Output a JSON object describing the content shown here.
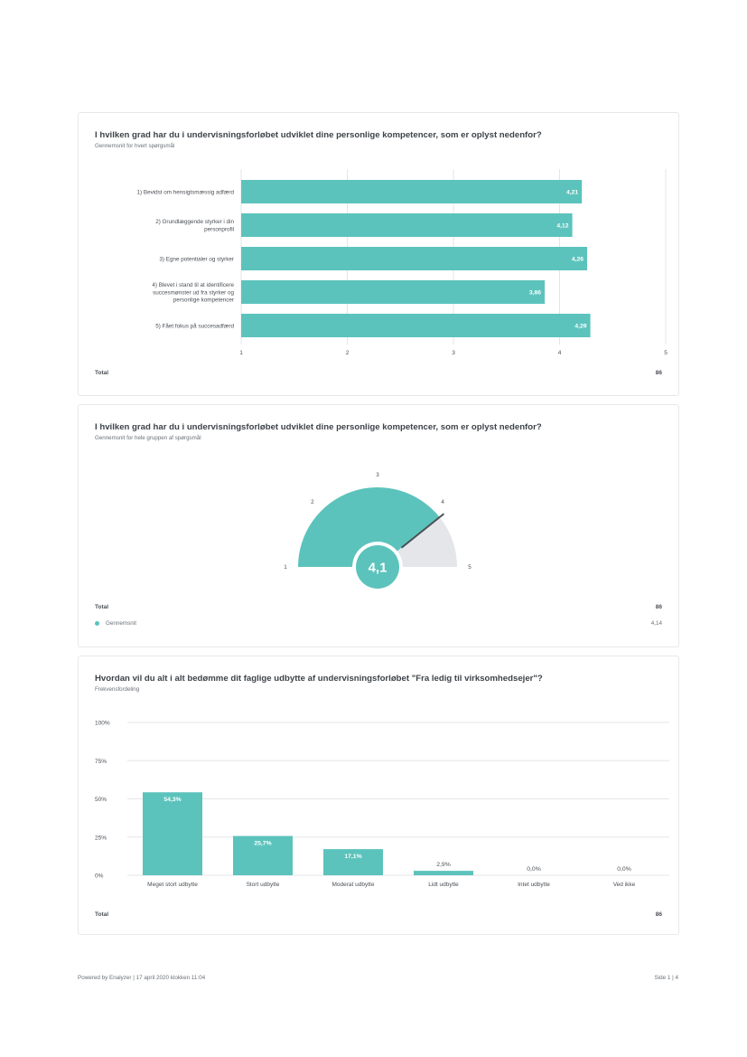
{
  "card1": {
    "title": "I hvilken grad har du i undervisningsforløbet udviklet dine personlige kompetencer, som er oplyst nedenfor?",
    "subtitle": "Gennemsnit for hvert spørgsmål",
    "total_label": "Total",
    "total_value": "86"
  },
  "card2": {
    "title": "I hvilken grad har du i undervisningsforløbet udviklet dine personlige kompetencer, som er oplyst nedenfor?",
    "subtitle": "Gennemsnit for hele gruppen af spørgsmål",
    "total_label": "Total",
    "total_value": "86",
    "legend_label": "Gennemsnit",
    "legend_value": "4,14",
    "gauge_labels": [
      "1",
      "2",
      "3",
      "4",
      "5"
    ]
  },
  "card3": {
    "title": "Hvordan vil du alt i alt bedømme dit faglige udbytte af undervisningsforløbet \"Fra ledig til virksomhedsejer\"?",
    "subtitle": "Frekvensfordeling",
    "total_label": "Total",
    "total_value": "86"
  },
  "footer": {
    "left": "Powered by Enalyzer | 17 april 2020 klokken 11:04",
    "right": "Side 1 | 4"
  },
  "colors": {
    "accent": "#5bc3bc",
    "gauge_rest": "#e4e6ea",
    "grid": "#e3e5e7",
    "needle": "#4a4f55"
  },
  "chart_data": [
    {
      "type": "bar",
      "orientation": "horizontal",
      "categories": [
        [
          "1) Bevidst om hensigtsmæssig adfærd"
        ],
        [
          "2) Grundlæggende styrker i din",
          "personprofil"
        ],
        [
          "3) Egne potentialer og styrker"
        ],
        [
          "4) Blevet i stand til at identificere",
          "succesmønster ud fra styrker og",
          "personlige kompetencer"
        ],
        [
          "5) Fået fokus på succesadfærd"
        ]
      ],
      "values": [
        4.21,
        4.12,
        4.26,
        3.86,
        4.29
      ],
      "value_labels": [
        "4,21",
        "4,12",
        "4,26",
        "3,86",
        "4,29"
      ],
      "xlim": [
        1,
        5
      ],
      "xticks": [
        "1",
        "2",
        "3",
        "4",
        "5"
      ],
      "grid": true
    },
    {
      "type": "gauge",
      "value": 4.14,
      "value_label": "4,1",
      "range": [
        1,
        5
      ]
    },
    {
      "type": "bar",
      "categories": [
        "Meget stort udbytte",
        "Stort udbytte",
        "Moderat udbytte",
        "Lidt udbytte",
        "Intet udbytte",
        "Ved ikke"
      ],
      "values": [
        54.3,
        25.7,
        17.1,
        2.9,
        0.0,
        0.0
      ],
      "value_labels": [
        "54,3%",
        "25,7%",
        "17,1%",
        "2,9%",
        "0,0%",
        "0,0%"
      ],
      "ylim": [
        0,
        100
      ],
      "yticks": [
        "0%",
        "25%",
        "50%",
        "75%",
        "100%"
      ],
      "grid": true
    }
  ]
}
